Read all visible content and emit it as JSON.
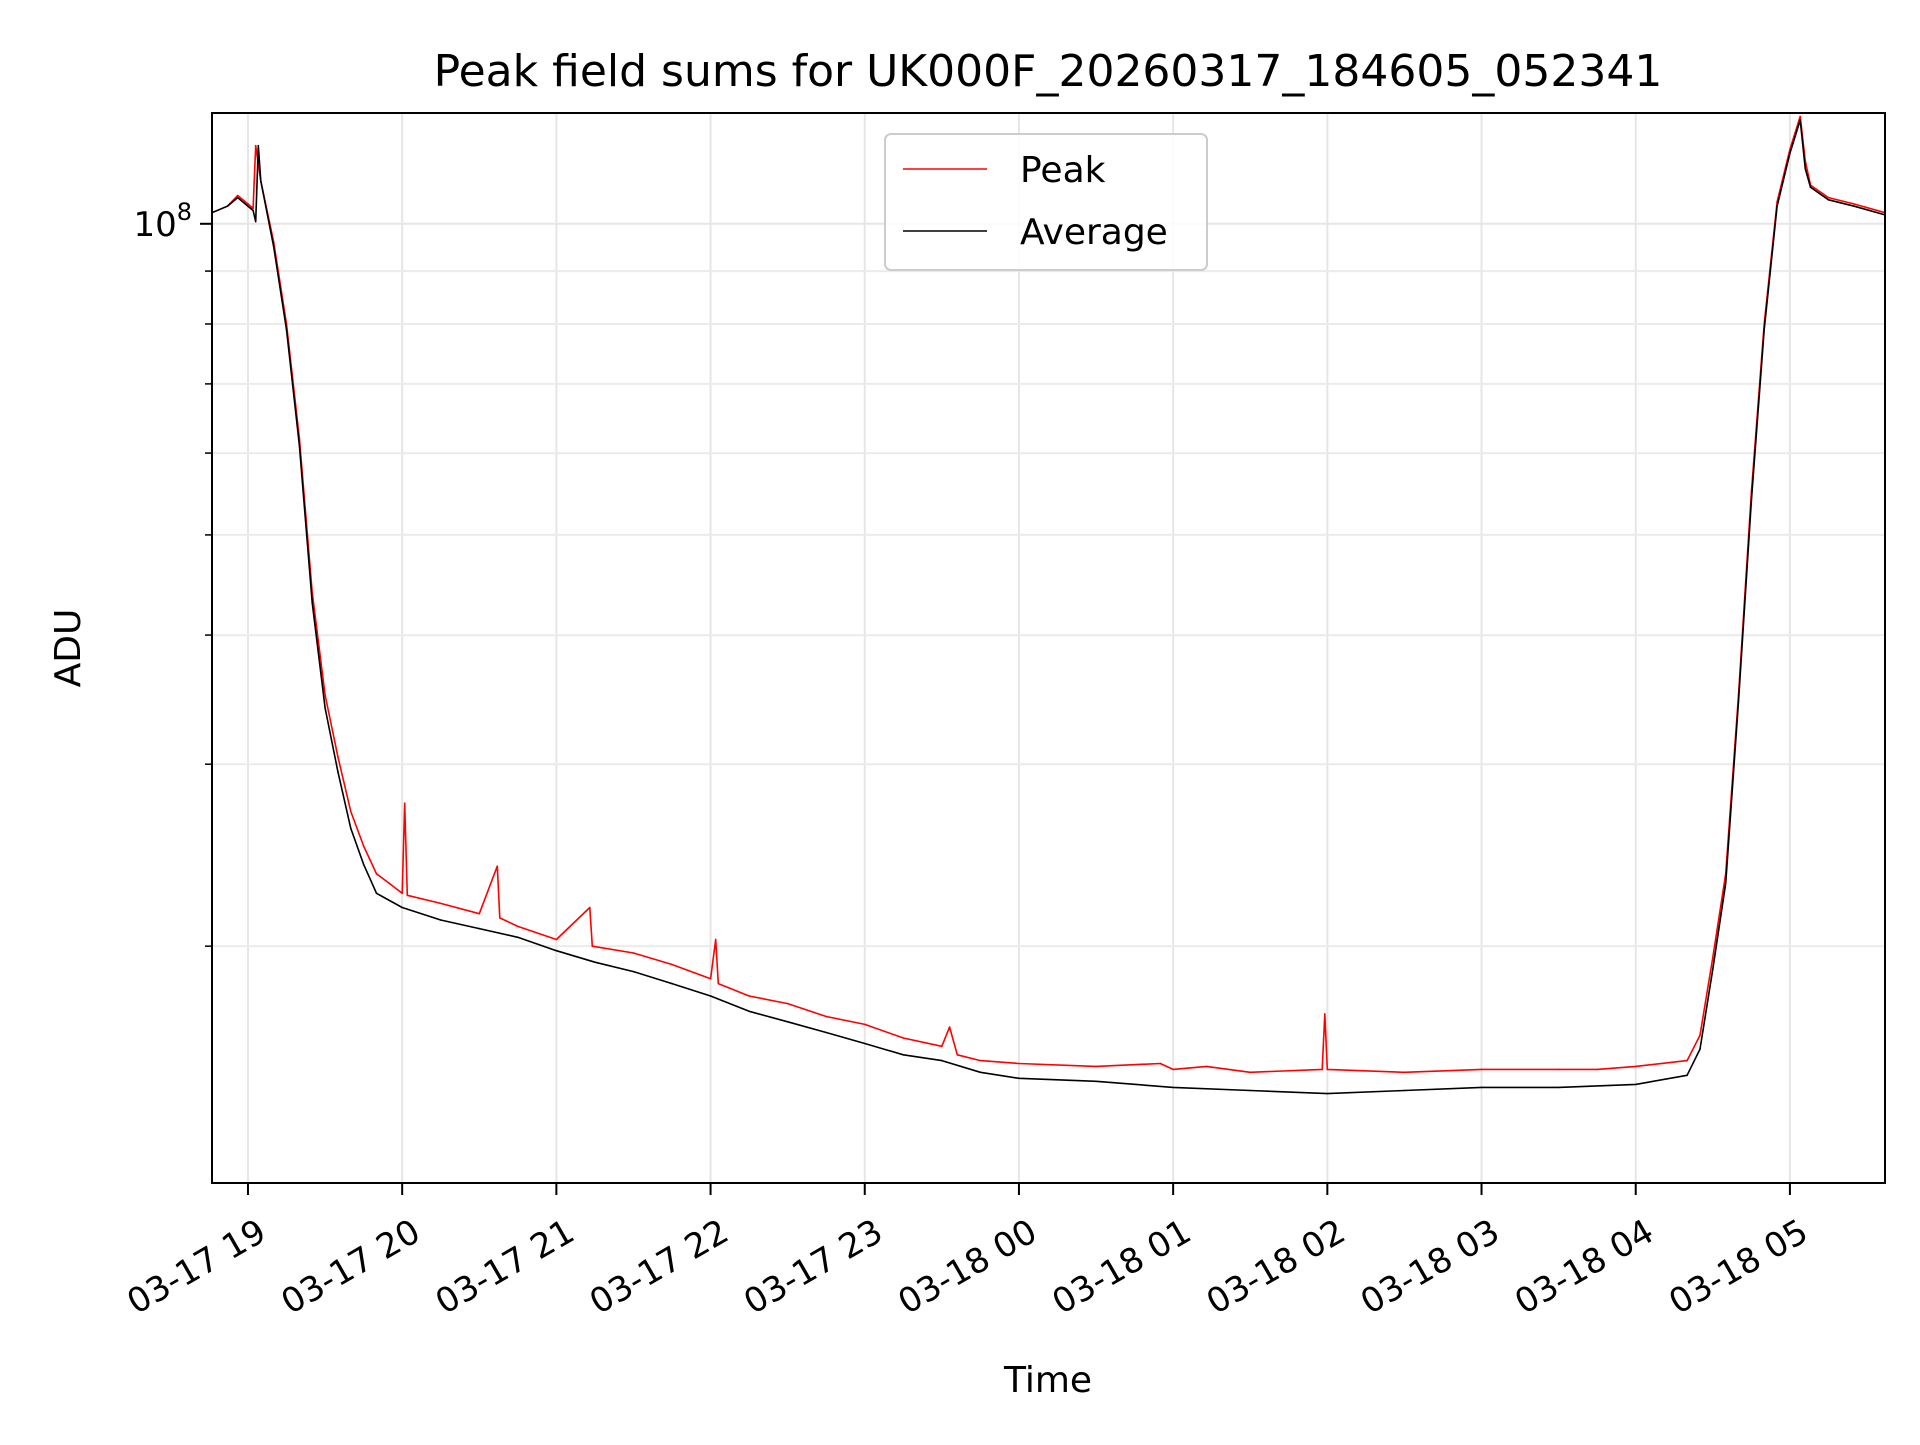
{
  "chart_data": {
    "type": "line",
    "title": "Peak field sums for UK000F_20260317_184605_052341",
    "xlabel": "Time",
    "ylabel": "ADU",
    "y_scale": "log",
    "ylim": [
      11800000,
      128000000
    ],
    "xlim": [
      "2026-03-17 18:46",
      "2026-03-18 05:37"
    ],
    "x_ticks": [
      "2026-03-17 19:00",
      "2026-03-17 20:00",
      "2026-03-17 21:00",
      "2026-03-17 22:00",
      "2026-03-17 23:00",
      "2026-03-18 00:00",
      "2026-03-18 01:00",
      "2026-03-18 02:00",
      "2026-03-18 03:00",
      "2026-03-18 04:00",
      "2026-03-18 05:00"
    ],
    "x_tick_labels": [
      "03-17 19",
      "03-17 20",
      "03-17 21",
      "03-17 22",
      "03-17 23",
      "03-18 00",
      "03-18 01",
      "03-18 02",
      "03-18 03",
      "03-18 04",
      "03-18 05"
    ],
    "y_major_ticks": [
      100000000
    ],
    "y_major_tick_labels": [
      "10",
      "8"
    ],
    "y_minor_ticks": [
      20000000,
      30000000,
      40000000,
      50000000,
      60000000,
      70000000,
      80000000,
      90000000
    ],
    "grid": true,
    "legend_placement": "upper center",
    "series": [
      {
        "name": "Peak",
        "color": "#ff0000",
        "points": [
          [
            "2026-03-17 18:46",
            102500000
          ],
          [
            "2026-03-17 18:52",
            104000000
          ],
          [
            "2026-03-17 18:56",
            106500000
          ],
          [
            "2026-03-17 19:00",
            104500000
          ],
          [
            "2026-03-17 19:02",
            103500000
          ],
          [
            "2026-03-17 19:03",
            119000000
          ],
          [
            "2026-03-17 19:05",
            110000000
          ],
          [
            "2026-03-17 19:10",
            96000000
          ],
          [
            "2026-03-17 19:15",
            80000000
          ],
          [
            "2026-03-17 19:20",
            62000000
          ],
          [
            "2026-03-17 19:25",
            44000000
          ],
          [
            "2026-03-17 19:30",
            35000000
          ],
          [
            "2026-03-17 19:35",
            30500000
          ],
          [
            "2026-03-17 19:40",
            27000000
          ],
          [
            "2026-03-17 19:45",
            25000000
          ],
          [
            "2026-03-17 19:50",
            23500000
          ],
          [
            "2026-03-17 19:55",
            23000000
          ],
          [
            "2026-03-17 20:00",
            22500000
          ],
          [
            "2026-03-17 20:01",
            27500000
          ],
          [
            "2026-03-17 20:02",
            22400000
          ],
          [
            "2026-03-17 20:15",
            22000000
          ],
          [
            "2026-03-17 20:30",
            21500000
          ],
          [
            "2026-03-17 20:37",
            23900000
          ],
          [
            "2026-03-17 20:38",
            21300000
          ],
          [
            "2026-03-17 20:45",
            20900000
          ],
          [
            "2026-03-17 21:00",
            20300000
          ],
          [
            "2026-03-17 21:13",
            21800000
          ],
          [
            "2026-03-17 21:14",
            20000000
          ],
          [
            "2026-03-17 21:30",
            19700000
          ],
          [
            "2026-03-17 21:45",
            19200000
          ],
          [
            "2026-03-17 22:00",
            18600000
          ],
          [
            "2026-03-17 22:02",
            20300000
          ],
          [
            "2026-03-17 22:03",
            18400000
          ],
          [
            "2026-03-17 22:15",
            17900000
          ],
          [
            "2026-03-17 22:30",
            17600000
          ],
          [
            "2026-03-17 22:45",
            17100000
          ],
          [
            "2026-03-17 23:00",
            16800000
          ],
          [
            "2026-03-17 23:15",
            16300000
          ],
          [
            "2026-03-17 23:30",
            16000000
          ],
          [
            "2026-03-17 23:33",
            16700000
          ],
          [
            "2026-03-17 23:36",
            15700000
          ],
          [
            "2026-03-17 23:45",
            15500000
          ],
          [
            "2026-03-18 00:00",
            15400000
          ],
          [
            "2026-03-18 00:30",
            15300000
          ],
          [
            "2026-03-18 00:55",
            15400000
          ],
          [
            "2026-03-18 01:00",
            15200000
          ],
          [
            "2026-03-18 01:13",
            15300000
          ],
          [
            "2026-03-18 01:30",
            15100000
          ],
          [
            "2026-03-18 01:58",
            15200000
          ],
          [
            "2026-03-18 01:59",
            17200000
          ],
          [
            "2026-03-18 02:00",
            15200000
          ],
          [
            "2026-03-18 02:30",
            15100000
          ],
          [
            "2026-03-18 03:00",
            15200000
          ],
          [
            "2026-03-18 03:30",
            15200000
          ],
          [
            "2026-03-18 03:45",
            15200000
          ],
          [
            "2026-03-18 04:00",
            15300000
          ],
          [
            "2026-03-18 04:20",
            15500000
          ],
          [
            "2026-03-18 04:25",
            16400000
          ],
          [
            "2026-03-18 04:30",
            19500000
          ],
          [
            "2026-03-18 04:35",
            23500000
          ],
          [
            "2026-03-18 04:40",
            35000000
          ],
          [
            "2026-03-18 04:45",
            55000000
          ],
          [
            "2026-03-18 04:50",
            80000000
          ],
          [
            "2026-03-18 04:55",
            105000000
          ],
          [
            "2026-03-18 05:00",
            118000000
          ],
          [
            "2026-03-18 05:04",
            127000000
          ],
          [
            "2026-03-18 05:06",
            115000000
          ],
          [
            "2026-03-18 05:08",
            109000000
          ],
          [
            "2026-03-18 05:15",
            106000000
          ],
          [
            "2026-03-18 05:25",
            104500000
          ],
          [
            "2026-03-18 05:37",
            102500000
          ]
        ]
      },
      {
        "name": "Average",
        "color": "#000000",
        "points": [
          [
            "2026-03-17 18:46",
            102500000
          ],
          [
            "2026-03-17 18:52",
            104000000
          ],
          [
            "2026-03-17 18:56",
            106000000
          ],
          [
            "2026-03-17 19:00",
            104000000
          ],
          [
            "2026-03-17 19:02",
            103000000
          ],
          [
            "2026-03-17 19:03",
            100500000
          ],
          [
            "2026-03-17 19:04",
            119000000
          ],
          [
            "2026-03-17 19:05",
            110000000
          ],
          [
            "2026-03-17 19:10",
            95000000
          ],
          [
            "2026-03-17 19:15",
            79000000
          ],
          [
            "2026-03-17 19:20",
            61000000
          ],
          [
            "2026-03-17 19:25",
            43000000
          ],
          [
            "2026-03-17 19:30",
            34000000
          ],
          [
            "2026-03-17 19:35",
            29500000
          ],
          [
            "2026-03-17 19:40",
            26000000
          ],
          [
            "2026-03-17 19:45",
            24000000
          ],
          [
            "2026-03-17 19:50",
            22500000
          ],
          [
            "2026-03-17 20:00",
            21800000
          ],
          [
            "2026-03-17 20:15",
            21200000
          ],
          [
            "2026-03-17 20:30",
            20800000
          ],
          [
            "2026-03-17 20:45",
            20400000
          ],
          [
            "2026-03-17 21:00",
            19800000
          ],
          [
            "2026-03-17 21:15",
            19300000
          ],
          [
            "2026-03-17 21:30",
            18900000
          ],
          [
            "2026-03-17 21:45",
            18400000
          ],
          [
            "2026-03-17 22:00",
            17900000
          ],
          [
            "2026-03-17 22:15",
            17300000
          ],
          [
            "2026-03-17 22:30",
            16900000
          ],
          [
            "2026-03-17 22:45",
            16500000
          ],
          [
            "2026-03-17 23:00",
            16100000
          ],
          [
            "2026-03-17 23:15",
            15700000
          ],
          [
            "2026-03-17 23:30",
            15500000
          ],
          [
            "2026-03-17 23:45",
            15100000
          ],
          [
            "2026-03-18 00:00",
            14900000
          ],
          [
            "2026-03-18 00:30",
            14800000
          ],
          [
            "2026-03-18 01:00",
            14600000
          ],
          [
            "2026-03-18 01:30",
            14500000
          ],
          [
            "2026-03-18 02:00",
            14400000
          ],
          [
            "2026-03-18 02:30",
            14500000
          ],
          [
            "2026-03-18 03:00",
            14600000
          ],
          [
            "2026-03-18 03:30",
            14600000
          ],
          [
            "2026-03-18 04:00",
            14700000
          ],
          [
            "2026-03-18 04:20",
            15000000
          ],
          [
            "2026-03-18 04:25",
            15900000
          ],
          [
            "2026-03-18 04:30",
            19000000
          ],
          [
            "2026-03-18 04:35",
            23000000
          ],
          [
            "2026-03-18 04:40",
            34500000
          ],
          [
            "2026-03-18 04:45",
            54000000
          ],
          [
            "2026-03-18 04:50",
            79000000
          ],
          [
            "2026-03-18 04:55",
            104000000
          ],
          [
            "2026-03-18 05:00",
            117000000
          ],
          [
            "2026-03-18 05:04",
            126000000
          ],
          [
            "2026-03-18 05:06",
            113000000
          ],
          [
            "2026-03-18 05:08",
            108500000
          ],
          [
            "2026-03-18 05:15",
            105500000
          ],
          [
            "2026-03-18 05:25",
            104000000
          ],
          [
            "2026-03-18 05:37",
            102000000
          ]
        ]
      }
    ]
  }
}
